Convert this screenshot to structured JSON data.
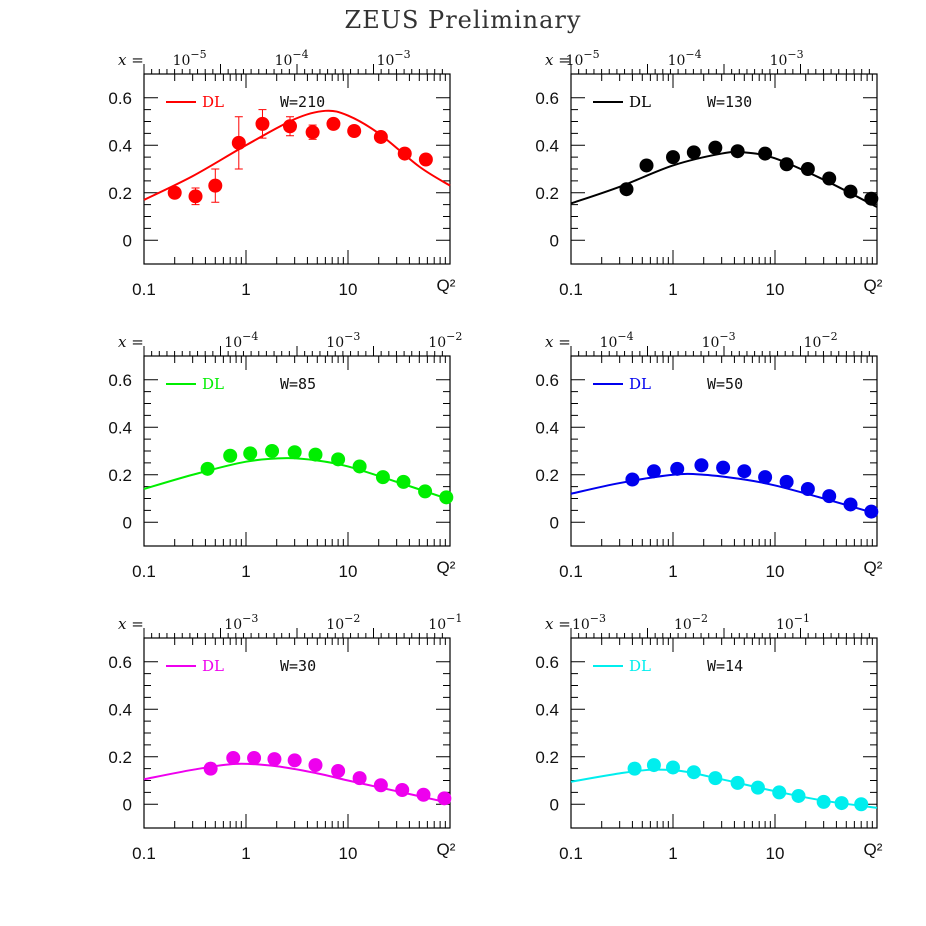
{
  "title": "ZEUS Preliminary",
  "chart_data": [
    {
      "type": "scatter",
      "color": "#ff0000",
      "legend": "DL",
      "w_label": "W=210",
      "x_scale": "log",
      "xlim": [
        0.1,
        100
      ],
      "ylim": [
        -0.1,
        0.7
      ],
      "x_ticks": [
        "0.1",
        "1",
        "10"
      ],
      "x_axis_label": "Q²",
      "y_ticks": [
        "0",
        "0.2",
        "0.4",
        "0.6"
      ],
      "top_axis_prefix": "x =",
      "top_axis_labels": [
        {
          "base": "10",
          "exp": "−5",
          "at": 0.28
        },
        {
          "base": "10",
          "exp": "−4",
          "at": 2.8
        },
        {
          "base": "10",
          "exp": "−3",
          "at": 28
        }
      ],
      "points": [
        {
          "q2": 0.2,
          "y": 0.2,
          "err": 0.02
        },
        {
          "q2": 0.32,
          "y": 0.185,
          "err": 0.035
        },
        {
          "q2": 0.5,
          "y": 0.23,
          "err": 0.07
        },
        {
          "q2": 0.85,
          "y": 0.41,
          "err": 0.11
        },
        {
          "q2": 1.45,
          "y": 0.49,
          "err": 0.06
        },
        {
          "q2": 2.7,
          "y": 0.48,
          "err": 0.04
        },
        {
          "q2": 4.5,
          "y": 0.455,
          "err": 0.03
        },
        {
          "q2": 7.2,
          "y": 0.49,
          "err": 0.02
        },
        {
          "q2": 11.5,
          "y": 0.46,
          "err": 0.02
        },
        {
          "q2": 21,
          "y": 0.435,
          "err": 0.02
        },
        {
          "q2": 36,
          "y": 0.365,
          "err": 0.015
        },
        {
          "q2": 58,
          "y": 0.34,
          "err": 0.015
        }
      ],
      "curve": [
        {
          "q2": 0.1,
          "y": 0.17
        },
        {
          "q2": 0.3,
          "y": 0.27
        },
        {
          "q2": 1,
          "y": 0.4
        },
        {
          "q2": 3,
          "y": 0.51
        },
        {
          "q2": 6,
          "y": 0.545
        },
        {
          "q2": 10,
          "y": 0.525
        },
        {
          "q2": 20,
          "y": 0.45
        },
        {
          "q2": 50,
          "y": 0.31
        },
        {
          "q2": 100,
          "y": 0.23
        }
      ]
    },
    {
      "type": "scatter",
      "color": "#000000",
      "legend": "DL",
      "w_label": "W=130",
      "x_scale": "log",
      "xlim": [
        0.1,
        100
      ],
      "ylim": [
        -0.1,
        0.7
      ],
      "x_ticks": [
        "0.1",
        "1",
        "10"
      ],
      "x_axis_label": "Q²",
      "y_ticks": [
        "0",
        "0.2",
        "0.4",
        "0.6"
      ],
      "top_axis_prefix": "x =",
      "top_axis_labels": [
        {
          "base": "10",
          "exp": "−5",
          "at": 0.13
        },
        {
          "base": "10",
          "exp": "−4",
          "at": 1.3
        },
        {
          "base": "10",
          "exp": "−3",
          "at": 13
        }
      ],
      "points": [
        {
          "q2": 0.35,
          "y": 0.215
        },
        {
          "q2": 0.55,
          "y": 0.315
        },
        {
          "q2": 1.0,
          "y": 0.35
        },
        {
          "q2": 1.6,
          "y": 0.37
        },
        {
          "q2": 2.6,
          "y": 0.39
        },
        {
          "q2": 4.3,
          "y": 0.375
        },
        {
          "q2": 8,
          "y": 0.365
        },
        {
          "q2": 13,
          "y": 0.32
        },
        {
          "q2": 21,
          "y": 0.3
        },
        {
          "q2": 34,
          "y": 0.26
        },
        {
          "q2": 55,
          "y": 0.205
        },
        {
          "q2": 88,
          "y": 0.175
        }
      ],
      "curve": [
        {
          "q2": 0.1,
          "y": 0.155
        },
        {
          "q2": 0.3,
          "y": 0.225
        },
        {
          "q2": 1,
          "y": 0.315
        },
        {
          "q2": 3,
          "y": 0.365
        },
        {
          "q2": 5,
          "y": 0.37
        },
        {
          "q2": 10,
          "y": 0.345
        },
        {
          "q2": 30,
          "y": 0.255
        },
        {
          "q2": 100,
          "y": 0.14
        }
      ]
    },
    {
      "type": "scatter",
      "color": "#00ee00",
      "legend": "DL",
      "w_label": "W=85",
      "x_scale": "log",
      "xlim": [
        0.1,
        100
      ],
      "ylim": [
        -0.1,
        0.7
      ],
      "x_ticks": [
        "0.1",
        "1",
        "10"
      ],
      "x_axis_label": "Q²",
      "y_ticks": [
        "0",
        "0.2",
        "0.4",
        "0.6"
      ],
      "top_axis_prefix": "x =",
      "top_axis_labels": [
        {
          "base": "10",
          "exp": "−4",
          "at": 0.9
        },
        {
          "base": "10",
          "exp": "−3",
          "at": 9
        },
        {
          "base": "10",
          "exp": "−2",
          "at": 90
        }
      ],
      "points": [
        {
          "q2": 0.42,
          "y": 0.225
        },
        {
          "q2": 0.7,
          "y": 0.28
        },
        {
          "q2": 1.1,
          "y": 0.29
        },
        {
          "q2": 1.8,
          "y": 0.3
        },
        {
          "q2": 3,
          "y": 0.295
        },
        {
          "q2": 4.8,
          "y": 0.285
        },
        {
          "q2": 8,
          "y": 0.265
        },
        {
          "q2": 13,
          "y": 0.235
        },
        {
          "q2": 22,
          "y": 0.19
        },
        {
          "q2": 35,
          "y": 0.17
        },
        {
          "q2": 57,
          "y": 0.13
        },
        {
          "q2": 92,
          "y": 0.105
        }
      ],
      "curve": [
        {
          "q2": 0.1,
          "y": 0.14
        },
        {
          "q2": 0.3,
          "y": 0.2
        },
        {
          "q2": 1,
          "y": 0.255
        },
        {
          "q2": 2.5,
          "y": 0.27
        },
        {
          "q2": 5,
          "y": 0.26
        },
        {
          "q2": 10,
          "y": 0.235
        },
        {
          "q2": 30,
          "y": 0.17
        },
        {
          "q2": 100,
          "y": 0.095
        }
      ]
    },
    {
      "type": "scatter",
      "color": "#0000ee",
      "legend": "DL",
      "w_label": "W=50",
      "x_scale": "log",
      "xlim": [
        0.1,
        100
      ],
      "ylim": [
        -0.1,
        0.7
      ],
      "x_ticks": [
        "0.1",
        "1",
        "10"
      ],
      "x_axis_label": "Q²",
      "y_ticks": [
        "0",
        "0.2",
        "0.4",
        "0.6"
      ],
      "top_axis_prefix": "x =",
      "top_axis_labels": [
        {
          "base": "10",
          "exp": "−4",
          "at": 0.28
        },
        {
          "base": "10",
          "exp": "−3",
          "at": 2.8
        },
        {
          "base": "10",
          "exp": "−2",
          "at": 28
        }
      ],
      "points": [
        {
          "q2": 0.4,
          "y": 0.18
        },
        {
          "q2": 0.65,
          "y": 0.215
        },
        {
          "q2": 1.1,
          "y": 0.225
        },
        {
          "q2": 1.9,
          "y": 0.24
        },
        {
          "q2": 3.1,
          "y": 0.23
        },
        {
          "q2": 5,
          "y": 0.215
        },
        {
          "q2": 8,
          "y": 0.19
        },
        {
          "q2": 13,
          "y": 0.17
        },
        {
          "q2": 21,
          "y": 0.14
        },
        {
          "q2": 34,
          "y": 0.11
        },
        {
          "q2": 55,
          "y": 0.075
        },
        {
          "q2": 88,
          "y": 0.045
        }
      ],
      "curve": [
        {
          "q2": 0.1,
          "y": 0.12
        },
        {
          "q2": 0.3,
          "y": 0.165
        },
        {
          "q2": 1,
          "y": 0.2
        },
        {
          "q2": 2,
          "y": 0.2
        },
        {
          "q2": 5,
          "y": 0.18
        },
        {
          "q2": 10,
          "y": 0.155
        },
        {
          "q2": 30,
          "y": 0.1
        },
        {
          "q2": 100,
          "y": 0.035
        }
      ]
    },
    {
      "type": "scatter",
      "color": "#ee00ee",
      "legend": "DL",
      "w_label": "W=30",
      "x_scale": "log",
      "xlim": [
        0.1,
        100
      ],
      "ylim": [
        -0.1,
        0.7
      ],
      "x_ticks": [
        "0.1",
        "1",
        "10"
      ],
      "x_axis_label": "Q²",
      "y_ticks": [
        "0",
        "0.2",
        "0.4",
        "0.6"
      ],
      "top_axis_prefix": "x =",
      "top_axis_labels": [
        {
          "base": "10",
          "exp": "−3",
          "at": 0.9
        },
        {
          "base": "10",
          "exp": "−2",
          "at": 9
        },
        {
          "base": "10",
          "exp": "−1",
          "at": 90
        }
      ],
      "points": [
        {
          "q2": 0.45,
          "y": 0.15
        },
        {
          "q2": 0.75,
          "y": 0.195
        },
        {
          "q2": 1.2,
          "y": 0.195
        },
        {
          "q2": 1.9,
          "y": 0.19
        },
        {
          "q2": 3,
          "y": 0.185
        },
        {
          "q2": 4.8,
          "y": 0.165
        },
        {
          "q2": 8,
          "y": 0.14
        },
        {
          "q2": 13,
          "y": 0.11
        },
        {
          "q2": 21,
          "y": 0.08
        },
        {
          "q2": 34,
          "y": 0.06
        },
        {
          "q2": 55,
          "y": 0.04
        },
        {
          "q2": 88,
          "y": 0.025
        }
      ],
      "curve": [
        {
          "q2": 0.1,
          "y": 0.105
        },
        {
          "q2": 0.3,
          "y": 0.145
        },
        {
          "q2": 0.8,
          "y": 0.17
        },
        {
          "q2": 2,
          "y": 0.16
        },
        {
          "q2": 5,
          "y": 0.13
        },
        {
          "q2": 10,
          "y": 0.1
        },
        {
          "q2": 30,
          "y": 0.055
        },
        {
          "q2": 100,
          "y": 0.005
        }
      ]
    },
    {
      "type": "scatter",
      "color": "#00eeee",
      "legend": "DL",
      "w_label": "W=14",
      "x_scale": "log",
      "xlim": [
        0.1,
        100
      ],
      "ylim": [
        -0.1,
        0.7
      ],
      "x_ticks": [
        "0.1",
        "1",
        "10"
      ],
      "x_axis_label": "Q²",
      "y_ticks": [
        "0",
        "0.2",
        "0.4",
        "0.6"
      ],
      "top_axis_prefix": "x =",
      "top_axis_labels": [
        {
          "base": "10",
          "exp": "−3",
          "at": 0.15
        },
        {
          "base": "10",
          "exp": "−2",
          "at": 1.5
        },
        {
          "base": "10",
          "exp": "−1",
          "at": 15
        }
      ],
      "points": [
        {
          "q2": 0.42,
          "y": 0.15
        },
        {
          "q2": 0.65,
          "y": 0.165
        },
        {
          "q2": 1.0,
          "y": 0.155
        },
        {
          "q2": 1.6,
          "y": 0.135
        },
        {
          "q2": 2.6,
          "y": 0.11
        },
        {
          "q2": 4.3,
          "y": 0.09
        },
        {
          "q2": 6.8,
          "y": 0.07
        },
        {
          "q2": 11,
          "y": 0.05
        },
        {
          "q2": 17,
          "y": 0.035
        },
        {
          "q2": 30,
          "y": 0.01
        },
        {
          "q2": 45,
          "y": 0.005
        },
        {
          "q2": 70,
          "y": 0.0
        }
      ],
      "curve": [
        {
          "q2": 0.1,
          "y": 0.095
        },
        {
          "q2": 0.3,
          "y": 0.13
        },
        {
          "q2": 0.6,
          "y": 0.145
        },
        {
          "q2": 1.2,
          "y": 0.14
        },
        {
          "q2": 3,
          "y": 0.105
        },
        {
          "q2": 10,
          "y": 0.055
        },
        {
          "q2": 30,
          "y": 0.015
        },
        {
          "q2": 100,
          "y": -0.015
        }
      ]
    }
  ]
}
